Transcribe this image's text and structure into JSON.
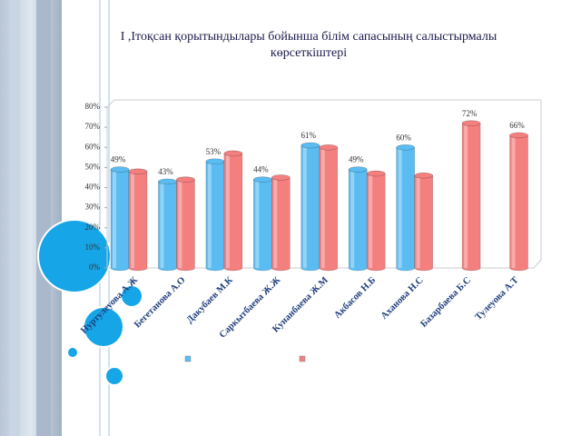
{
  "chart_data": {
    "type": "bar",
    "title": "I ,Iтоқсан қорытындылары бойынша білім сапасының салыстырмалы көрсеткіштері",
    "categories": [
      "Нуртулеуова А.Ж",
      "Бегетанова А.О",
      "Дакубаев М.К",
      "Саркытбаева Ж.Ж",
      "Кунанбаева Ж.М",
      "Акбасов Н.Б",
      "Аханова Н.С",
      "Базарбаева Б.С",
      "Тулеуова А.Т"
    ],
    "series": [
      {
        "color": "#5bbcf2",
        "values": [
          49,
          43,
          53,
          44,
          61,
          49,
          60,
          null,
          null
        ],
        "value_labels": [
          "49%",
          "43%",
          "53%",
          "44%",
          "61%",
          "49%",
          "60%",
          null,
          null
        ]
      },
      {
        "color": "#f47f7f",
        "values": [
          48,
          44,
          57,
          45,
          60,
          47,
          46,
          72,
          66
        ],
        "value_labels": [
          null,
          null,
          null,
          null,
          null,
          null,
          null,
          "72%",
          "66%"
        ]
      }
    ],
    "ylim": [
      0,
      80
    ],
    "yticks": [
      {
        "value": 0,
        "label": "0%"
      },
      {
        "value": 10,
        "label": "10%"
      },
      {
        "value": 20,
        "label": "20%"
      },
      {
        "value": 30,
        "label": "30%"
      },
      {
        "value": 40,
        "label": "40%"
      },
      {
        "value": 50,
        "label": "50%"
      },
      {
        "value": 60,
        "label": "60%"
      },
      {
        "value": 70,
        "label": "70%"
      },
      {
        "value": 80,
        "label": "80%"
      }
    ]
  }
}
